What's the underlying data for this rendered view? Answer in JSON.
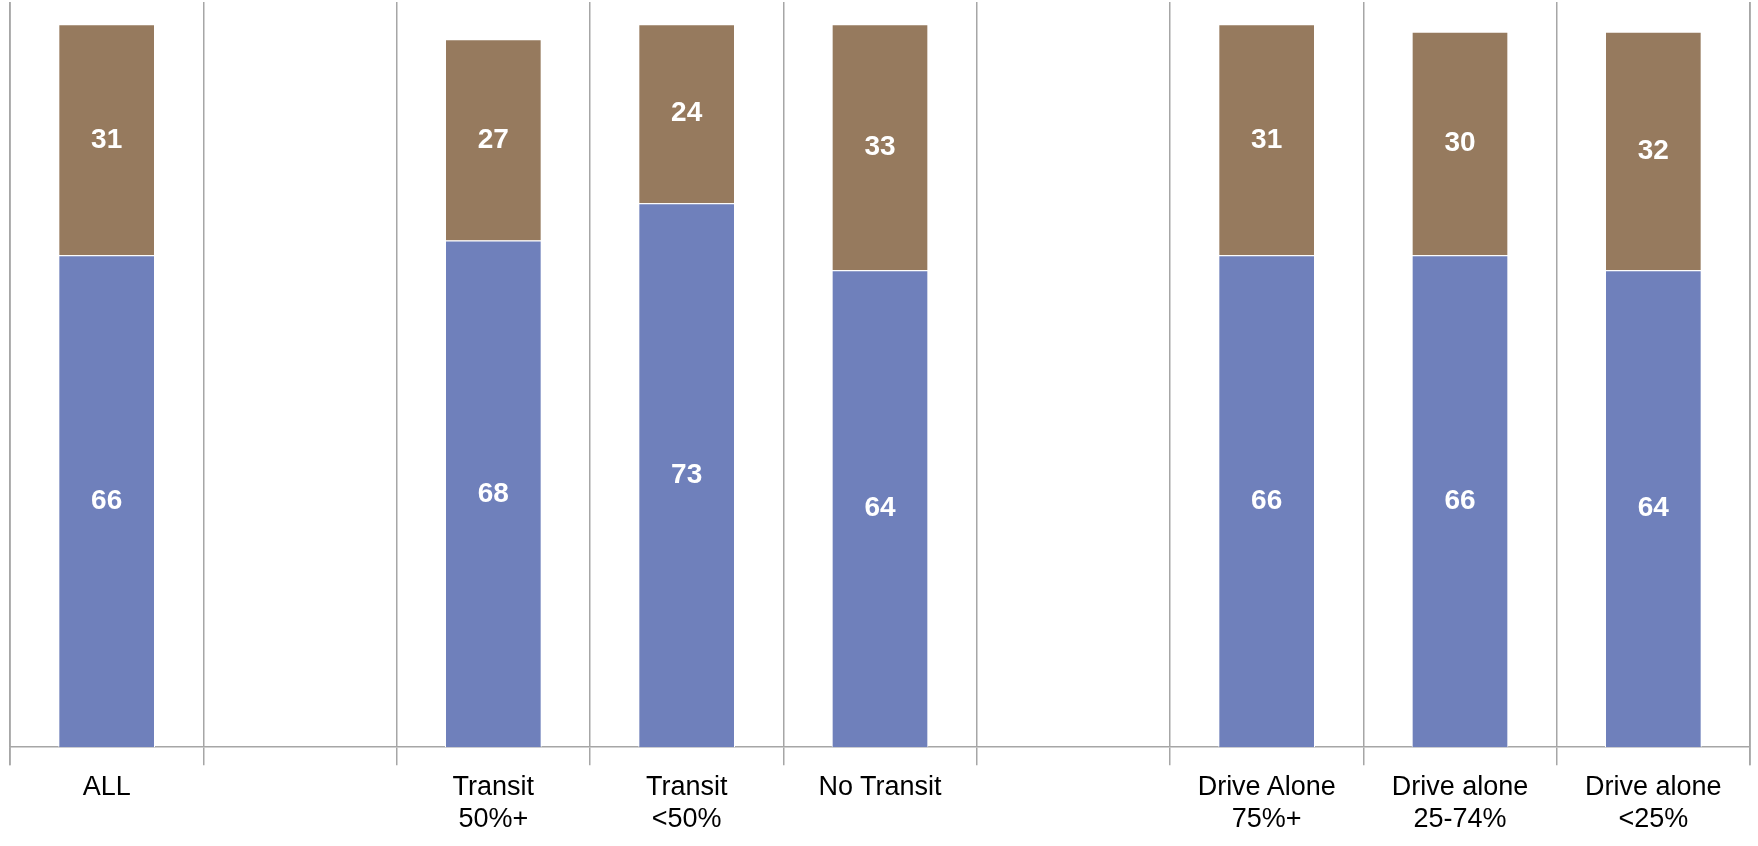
{
  "chart_data": {
    "type": "bar",
    "stacked": true,
    "categories": [
      "ALL",
      null,
      "Transit\n50%+",
      "Transit\n<50%",
      "No Transit",
      null,
      "Drive Alone\n75%+",
      "Drive alone\n25-74%",
      "Drive alone\n<25%"
    ],
    "series": [
      {
        "color": "#6f80bb",
        "values": [
          66,
          null,
          68,
          73,
          64,
          null,
          66,
          66,
          64
        ]
      },
      {
        "color": "#967a5e",
        "values": [
          31,
          null,
          27,
          24,
          33,
          null,
          31,
          30,
          32
        ]
      }
    ],
    "ylim": [
      0,
      100
    ],
    "tick_labels": "x",
    "grid": "x",
    "legend": false,
    "data_labels": true
  }
}
